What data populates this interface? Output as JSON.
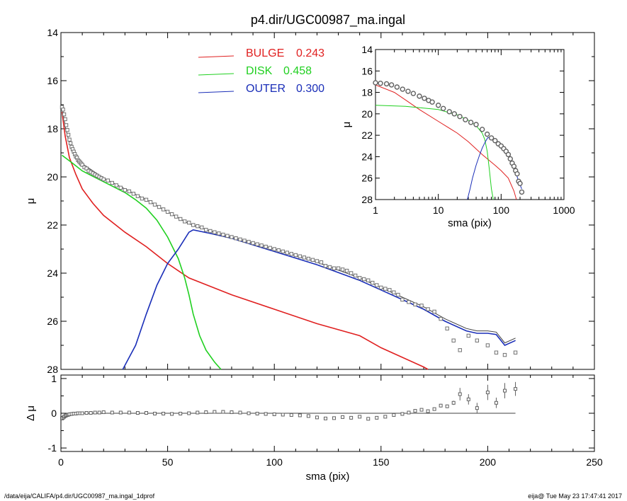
{
  "title": "p4.dir/UGC00987_ma.ingal",
  "footer": {
    "left": "/data/eija/CALIFA/p4.dir/UGC00987_ma.ingal_1dprof",
    "right": "eija@  Tue May 23 17:47:41 2017"
  },
  "colors": {
    "bulge": "#e02020",
    "disk": "#20d020",
    "outer": "#1a2eb8",
    "model": "#404040",
    "data": "#808080"
  },
  "chart_data": [
    {
      "type": "line",
      "panel": "main",
      "xlabel": "sma (pix)",
      "ylabel": "μ",
      "xlim": [
        0,
        250
      ],
      "ylim": [
        28,
        14
      ],
      "xticks": [
        0,
        50,
        100,
        150,
        200,
        250
      ],
      "yticks": [
        14,
        16,
        18,
        20,
        22,
        24,
        26,
        28
      ],
      "legend": [
        {
          "name": "BULGE",
          "value": "0.243",
          "color": "#e02020"
        },
        {
          "name": "DISK",
          "value": "0.458",
          "color": "#20d020"
        },
        {
          "name": "OUTER",
          "value": "0.300",
          "color": "#1a2eb8"
        }
      ],
      "series": [
        {
          "name": "BULGE",
          "color": "#e02020",
          "x": [
            0.5,
            2,
            4,
            7,
            10,
            15,
            20,
            30,
            40,
            50,
            60,
            80,
            100,
            120,
            140,
            150,
            160,
            170,
            172
          ],
          "y": [
            17.3,
            18.3,
            19.2,
            19.9,
            20.5,
            21.1,
            21.6,
            22.3,
            22.9,
            23.6,
            24.2,
            24.9,
            25.5,
            26.1,
            26.6,
            27.1,
            27.5,
            27.9,
            28.0
          ]
        },
        {
          "name": "DISK",
          "color": "#20d020",
          "x": [
            0.5,
            5,
            10,
            20,
            30,
            35,
            40,
            45,
            50,
            55,
            58,
            60,
            62,
            65,
            68,
            72,
            75
          ],
          "y": [
            19.1,
            19.4,
            19.75,
            20.2,
            20.65,
            20.95,
            21.3,
            21.8,
            22.5,
            23.4,
            24.2,
            24.9,
            25.7,
            26.6,
            27.2,
            27.7,
            28.0
          ]
        },
        {
          "name": "OUTER",
          "color": "#1a2eb8",
          "x": [
            29,
            35,
            40,
            45,
            50,
            55,
            60,
            62,
            70,
            80,
            100,
            120,
            140,
            150,
            160,
            170,
            180,
            190,
            195,
            200,
            204,
            208,
            213
          ],
          "y": [
            28.0,
            27.0,
            25.7,
            24.5,
            23.6,
            23.0,
            22.3,
            22.2,
            22.35,
            22.55,
            23.1,
            23.65,
            24.3,
            24.7,
            25.1,
            25.5,
            26.0,
            26.4,
            26.5,
            26.5,
            26.55,
            27.0,
            26.8
          ]
        },
        {
          "name": "model",
          "color": "#404040",
          "x": [
            0.5,
            1,
            2,
            4,
            6,
            10,
            15,
            20,
            30,
            40,
            50,
            60,
            70,
            80,
            100,
            120,
            140,
            150,
            160,
            170,
            180,
            190,
            195,
            200,
            204,
            208,
            213
          ],
          "y": [
            17.1,
            17.3,
            17.9,
            18.6,
            19.0,
            19.45,
            19.75,
            20.05,
            20.5,
            20.95,
            21.45,
            21.95,
            22.25,
            22.5,
            23.0,
            23.55,
            24.2,
            24.6,
            25.0,
            25.4,
            25.9,
            26.3,
            26.4,
            26.4,
            26.45,
            26.9,
            26.7
          ]
        }
      ],
      "points": {
        "name": "data",
        "color": "#808080",
        "x": [
          0.5,
          1,
          1.5,
          2,
          2.5,
          3,
          3.5,
          4,
          4.5,
          5,
          5.5,
          6,
          6.5,
          7,
          7.5,
          8,
          8.5,
          9,
          9.5,
          10,
          11,
          12,
          13,
          14,
          15,
          16,
          17,
          18,
          19,
          20,
          22,
          24,
          26,
          28,
          30,
          32,
          34,
          36,
          38,
          40,
          42,
          44,
          46,
          48,
          50,
          52,
          54,
          56,
          58,
          60,
          62,
          64,
          66,
          68,
          70,
          72,
          74,
          76,
          78,
          80,
          82,
          84,
          86,
          88,
          90,
          92,
          94,
          96,
          98,
          100,
          102,
          104,
          106,
          108,
          110,
          112,
          114,
          116,
          118,
          120,
          122,
          124,
          126,
          128,
          130,
          132,
          134,
          136,
          138,
          140,
          142,
          144,
          146,
          148,
          150,
          152,
          154,
          156,
          158,
          160,
          163,
          166,
          169,
          172,
          175,
          178,
          181,
          184,
          187,
          191,
          195,
          200,
          204,
          208,
          213
        ],
        "y": [
          17.1,
          17.2,
          17.4,
          17.6,
          17.85,
          18.05,
          18.25,
          18.45,
          18.6,
          18.75,
          18.85,
          18.95,
          19.05,
          19.15,
          19.2,
          19.3,
          19.35,
          19.4,
          19.45,
          19.5,
          19.6,
          19.65,
          19.75,
          19.8,
          19.85,
          19.9,
          19.95,
          20.0,
          20.05,
          20.1,
          20.15,
          20.25,
          20.35,
          20.45,
          20.55,
          20.6,
          20.7,
          20.8,
          20.9,
          20.95,
          21.05,
          21.15,
          21.25,
          21.35,
          21.45,
          21.55,
          21.65,
          21.75,
          21.85,
          21.9,
          22.0,
          22.05,
          22.1,
          22.2,
          22.25,
          22.3,
          22.35,
          22.4,
          22.45,
          22.5,
          22.55,
          22.6,
          22.65,
          22.7,
          22.75,
          22.8,
          22.85,
          22.9,
          22.95,
          23.0,
          23.05,
          23.1,
          23.15,
          23.2,
          23.25,
          23.3,
          23.35,
          23.4,
          23.45,
          23.5,
          23.55,
          23.7,
          23.75,
          23.8,
          23.8,
          23.85,
          23.9,
          24.0,
          24.1,
          24.2,
          24.25,
          24.3,
          24.4,
          24.5,
          24.6,
          24.65,
          24.7,
          24.8,
          24.9,
          25.1,
          25.2,
          25.3,
          25.35,
          25.5,
          25.6,
          25.9,
          26.3,
          26.8,
          27.2,
          26.6,
          26.8,
          27.0,
          27.3,
          27.4,
          27.3
        ]
      }
    },
    {
      "type": "scatter",
      "panel": "residual",
      "xlabel": "sma (pix)",
      "ylabel": "Δ μ",
      "xlim": [
        0,
        250
      ],
      "ylim": [
        -1.1,
        1.1
      ],
      "yticks": [
        -1,
        0,
        1
      ],
      "x": [
        0.5,
        1,
        1.5,
        2,
        2.5,
        3,
        3.5,
        4,
        5,
        6,
        7,
        8,
        9,
        10,
        12,
        14,
        16,
        18,
        20,
        24,
        28,
        32,
        36,
        40,
        44,
        48,
        52,
        56,
        60,
        64,
        68,
        72,
        76,
        80,
        84,
        88,
        92,
        96,
        100,
        104,
        108,
        112,
        116,
        120,
        124,
        128,
        132,
        136,
        140,
        144,
        148,
        152,
        156,
        160,
        163,
        166,
        169,
        172,
        175,
        178,
        181,
        184,
        187,
        191,
        195,
        200,
        204,
        208,
        213
      ],
      "y": [
        -0.15,
        -0.13,
        -0.1,
        -0.08,
        -0.06,
        -0.05,
        -0.04,
        -0.03,
        -0.02,
        -0.01,
        -0.01,
        0.0,
        0.0,
        0.0,
        0.01,
        0.01,
        0.02,
        0.02,
        0.03,
        0.02,
        0.02,
        0.02,
        0.01,
        0.01,
        -0.01,
        -0.01,
        -0.02,
        -0.01,
        0.0,
        0.02,
        0.03,
        0.04,
        0.04,
        0.03,
        0.02,
        0.0,
        -0.01,
        -0.02,
        -0.03,
        -0.04,
        -0.05,
        -0.06,
        -0.08,
        -0.12,
        -0.15,
        -0.14,
        -0.11,
        -0.13,
        -0.1,
        -0.16,
        -0.13,
        -0.1,
        -0.05,
        -0.02,
        0.02,
        0.07,
        0.1,
        0.06,
        0.12,
        0.22,
        0.2,
        0.3,
        0.55,
        0.4,
        0.15,
        0.6,
        0.3,
        0.65,
        0.7
      ],
      "err": [
        0,
        0,
        0,
        0,
        0,
        0,
        0,
        0,
        0,
        0,
        0,
        0,
        0,
        0,
        0,
        0,
        0,
        0,
        0,
        0,
        0,
        0,
        0,
        0,
        0,
        0,
        0,
        0,
        0,
        0,
        0,
        0,
        0,
        0,
        0,
        0,
        0,
        0,
        0,
        0,
        0,
        0,
        0,
        0,
        0,
        0,
        0,
        0,
        0,
        0,
        0,
        0,
        0,
        0,
        0,
        0,
        0,
        0,
        0,
        0.05,
        0.05,
        0.06,
        0.18,
        0.15,
        0.15,
        0.22,
        0.15,
        0.22,
        0.2
      ]
    },
    {
      "type": "line",
      "panel": "inset",
      "xlabel": "sma (pix)",
      "ylabel": "μ",
      "xscale": "log",
      "xlim": [
        1,
        1000
      ],
      "ylim": [
        28,
        14
      ],
      "xticks": [
        1,
        10,
        100,
        1000
      ],
      "yticks": [
        14,
        16,
        18,
        20,
        22,
        24,
        26,
        28
      ],
      "series": [
        {
          "name": "BULGE",
          "color": "#e02020",
          "x": [
            1,
            2,
            3,
            5,
            10,
            20,
            30,
            50,
            80,
            100,
            130,
            160,
            175
          ],
          "y": [
            17.3,
            18.0,
            18.7,
            19.6,
            20.7,
            21.8,
            22.6,
            23.8,
            24.8,
            25.3,
            26.0,
            27.2,
            28.0
          ]
        },
        {
          "name": "DISK",
          "color": "#20d020",
          "x": [
            1,
            3,
            10,
            20,
            30,
            40,
            50,
            55,
            60,
            65,
            70,
            75
          ],
          "y": [
            19.2,
            19.3,
            19.6,
            20.1,
            20.6,
            21.1,
            21.8,
            22.4,
            23.5,
            25.2,
            27.0,
            28.0
          ]
        },
        {
          "name": "OUTER",
          "color": "#1a2eb8",
          "x": [
            29,
            32,
            35,
            40,
            45,
            50,
            55,
            60,
            62,
            80,
            100,
            130,
            160,
            190,
            213
          ],
          "y": [
            28.0,
            27.0,
            26.0,
            24.8,
            23.9,
            23.2,
            22.7,
            22.3,
            22.2,
            22.5,
            23.0,
            23.9,
            24.9,
            26.3,
            27.0
          ]
        }
      ],
      "points": {
        "x": [
          1,
          1.2,
          1.5,
          1.8,
          2.2,
          2.7,
          3.3,
          4,
          5,
          6,
          7,
          8,
          10,
          12,
          15,
          18,
          22,
          27,
          33,
          40,
          50,
          60,
          70,
          80,
          90,
          100,
          110,
          120,
          130,
          140,
          150,
          160,
          170,
          180,
          190,
          200,
          213
        ],
        "y": [
          17.1,
          17.15,
          17.2,
          17.3,
          17.5,
          17.7,
          17.9,
          18.1,
          18.35,
          18.55,
          18.75,
          18.9,
          19.2,
          19.5,
          19.8,
          20.0,
          20.25,
          20.55,
          20.8,
          21.0,
          21.45,
          21.9,
          22.25,
          22.5,
          22.8,
          23.0,
          23.25,
          23.5,
          23.8,
          24.2,
          24.6,
          24.9,
          25.3,
          25.6,
          26.3,
          26.5,
          27.3
        ]
      }
    }
  ]
}
